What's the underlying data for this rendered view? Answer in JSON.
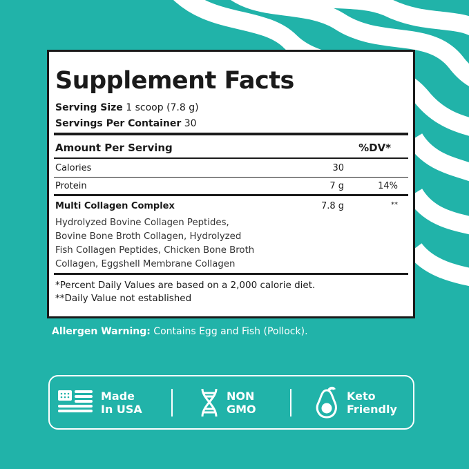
{
  "title": "Supplement Facts",
  "serving_size": {
    "label": "Serving Size",
    "value": "1 scoop (7.8 g)"
  },
  "servings_per_container": {
    "label": "Servings Per Container",
    "value": "30"
  },
  "header": {
    "amount": "Amount Per Serving",
    "dv": "%DV*"
  },
  "rows": [
    {
      "name": "Calories",
      "amount": "30",
      "dv": ""
    },
    {
      "name": "Protein",
      "amount": "7 g",
      "dv": "14%"
    },
    {
      "name": "Multi Collagen Complex",
      "amount": "7.8 g",
      "dv": "**"
    }
  ],
  "ingredients": [
    "Hydrolyzed Bovine Collagen Peptides,",
    "Bovine Bone Broth Collagen, Hydrolyzed",
    "Fish Collagen Peptides, Chicken Bone Broth",
    "Collagen, Eggshell Membrane Collagen"
  ],
  "footnotes": [
    "*Percent Daily Values are based on a 2,000 calorie diet.",
    "**Daily Value not established"
  ],
  "allergen": {
    "label": "Allergen Warning:",
    "text": "Contains Egg and Fish (Pollock)."
  },
  "badges": [
    {
      "icon": "us-flag-icon",
      "line1": "Made",
      "line2": "In USA"
    },
    {
      "icon": "dna-icon",
      "line1": "NON",
      "line2": "GMO"
    },
    {
      "icon": "avocado-icon",
      "line1": "Keto",
      "line2": "Friendly"
    }
  ],
  "colors": {
    "background": "#21b3a9",
    "label": "#ffffff",
    "text": "#1a1a1a"
  }
}
